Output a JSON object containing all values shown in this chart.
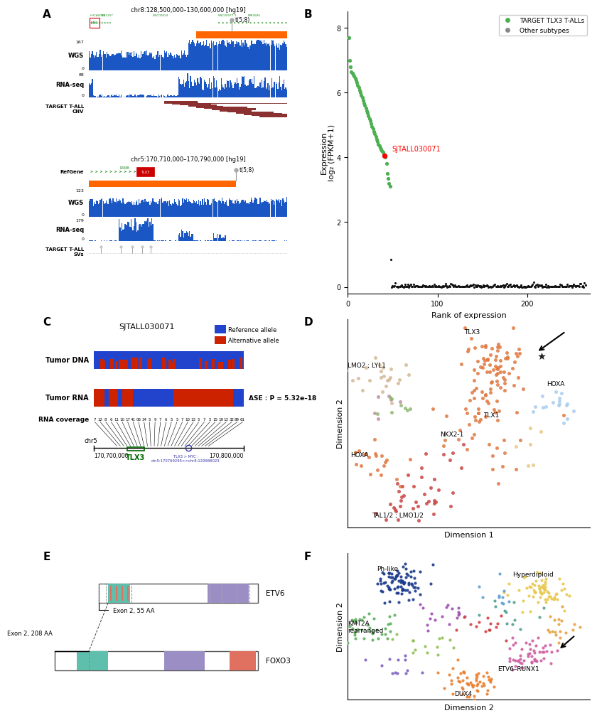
{
  "panel_label_fontsize": 11,
  "A_chr8_title": "chr8:128,500,000–130,600,000 [hg19]",
  "A_chr5_title": "chr5:170,710,000–170,790,000 [hg19]",
  "A_wgs_label": "WGS",
  "A_rnaseq_label": "RNA-seq",
  "A_target_cnv_label": "TARGET T-ALL\nCNV",
  "A_target_svs_label": "TARGET T-ALL\nSVs",
  "A_refgene_label": "RefGene",
  "A_t58_label": "t(5;8)",
  "A_wgs_max_chr8": 167,
  "A_rnaseq_max_chr8": 88,
  "A_wgs_max_chr5": 123,
  "A_rnaseq_max_chr5": 179,
  "B_xlabel": "Rank of expression",
  "B_ylabel": "Expression\nlog₂ (FPKM+1)",
  "B_legend_green": "TARGET TLX3 T-ALLs",
  "B_legend_gray": "Other subtypes",
  "B_sjtall_label": "SJTALL030071",
  "B_sjtall_color": "#FF0000",
  "B_green_color": "#4CAF50",
  "B_gray_color": "#888888",
  "C_title": "SJTALL030071",
  "C_tumor_dna_label": "Tumor DNA",
  "C_tumor_rna_label": "Tumor RNA",
  "C_rna_cov_label": "RNA coverage",
  "C_ref_allele_label": "Reference allele",
  "C_alt_allele_label": "Alternative allele",
  "C_blue_color": "#2244CC",
  "C_red_color": "#CC2200",
  "C_ase_text": "ASE : P = 5.32e–18",
  "C_coord_left": "170,700,000",
  "C_coord_right": "170,800,000",
  "C_tlx3_label": "TLX3",
  "C_bp_label": "TLX3 > MYC :\nchr5:170769295>>chr8:129986023",
  "C_cov_numbers": [
    "7",
    "12",
    "8",
    "6",
    "11",
    "10",
    "17",
    "41",
    "06",
    "34",
    "5",
    "9",
    "7",
    "6",
    "5",
    "5",
    "7",
    "10",
    "13",
    "5",
    "7",
    "5",
    "15",
    "19",
    "13",
    "32",
    "89",
    "61"
  ],
  "D_xlabel": "Dimension 1",
  "D_ylabel": "Dimension 2",
  "E_etv6_label": "ETV6",
  "E_foxo3_label": "FOXO3",
  "E_exon2_55aa": "Exon 2, 55 AA",
  "E_exon2_208aa": "Exon 2, 208 AA",
  "E_teal_color": "#5FBFAD",
  "E_salmon_color": "#E07060",
  "E_lavender_color": "#9B8EC4",
  "F_xlabel": "Dimension 2",
  "F_ylabel": "Dimension 2"
}
